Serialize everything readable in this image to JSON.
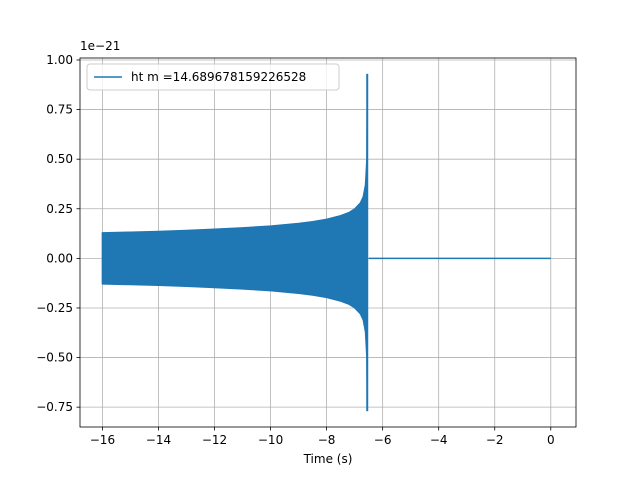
{
  "chart_data": {
    "type": "line",
    "title": "",
    "xlabel": "Time (s)",
    "ylabel": "",
    "y_scale_label": "1e−21",
    "xlim": [
      -16.8,
      0.9
    ],
    "ylim": [
      -0.85,
      1.01
    ],
    "x_ticks": [
      -16,
      -14,
      -12,
      -10,
      -8,
      -6,
      -4,
      -2,
      0
    ],
    "x_tick_labels": [
      "−16",
      "−14",
      "−12",
      "−10",
      "−8",
      "−6",
      "−4",
      "−2",
      "0"
    ],
    "y_ticks": [
      -0.75,
      -0.5,
      -0.25,
      0.0,
      0.25,
      0.5,
      0.75,
      1.0
    ],
    "y_tick_labels": [
      "−0.75",
      "−0.50",
      "−0.25",
      "0.00",
      "0.25",
      "0.50",
      "0.75",
      "1.00"
    ],
    "grid": true,
    "legend_position": "top-left",
    "series": [
      {
        "name": "ht m =14.689678159226528",
        "color": "#1f77b4",
        "envelope": {
          "x": [
            -16.0,
            -15.0,
            -14.0,
            -13.0,
            -12.0,
            -11.0,
            -10.0,
            -9.0,
            -8.5,
            -8.0,
            -7.5,
            -7.2,
            -7.0,
            -6.8,
            -6.7,
            -6.62,
            -6.57,
            -6.55
          ],
          "upper": [
            0.13,
            0.133,
            0.137,
            0.142,
            0.148,
            0.155,
            0.164,
            0.177,
            0.186,
            0.198,
            0.216,
            0.232,
            0.25,
            0.28,
            0.31,
            0.37,
            0.5,
            0.93
          ],
          "lower": [
            -0.13,
            -0.133,
            -0.137,
            -0.142,
            -0.148,
            -0.155,
            -0.164,
            -0.177,
            -0.186,
            -0.198,
            -0.216,
            -0.232,
            -0.25,
            -0.28,
            -0.31,
            -0.37,
            -0.5,
            -0.77
          ]
        },
        "flat": {
          "x_start": -6.5,
          "x_end": 0.0,
          "value": 0.0
        }
      }
    ]
  }
}
